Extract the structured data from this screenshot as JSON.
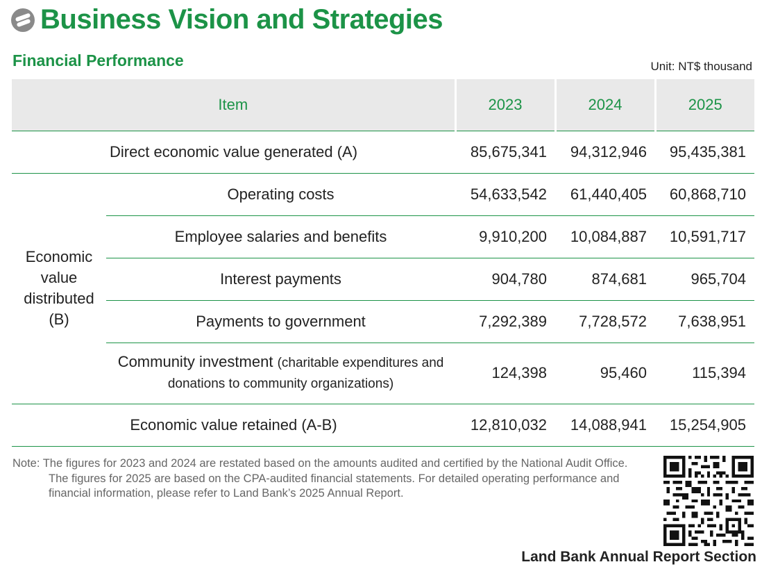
{
  "header": {
    "title": "Business Vision and Strategies",
    "logo_icon": "land-bank-logo-icon"
  },
  "section": {
    "title": "Financial Performance",
    "unit": "Unit: NT$ thousand"
  },
  "table": {
    "columns": [
      "Item",
      "2023",
      "2024",
      "2025"
    ],
    "direct": {
      "label": "Direct economic value generated (A)",
      "values": [
        "85,675,341",
        "94,312,946",
        "95,435,381"
      ]
    },
    "distributed_group": "Economic value distributed (B)",
    "distributed": [
      {
        "label": "Operating costs",
        "values": [
          "54,633,542",
          "61,440,405",
          "60,868,710"
        ]
      },
      {
        "label": "Employee salaries and benefits",
        "values": [
          "9,910,200",
          "10,084,887",
          "10,591,717"
        ]
      },
      {
        "label": "Interest payments",
        "values": [
          "904,780",
          "874,681",
          "965,704"
        ]
      },
      {
        "label": "Payments to government",
        "values": [
          "7,292,389",
          "7,728,572",
          "7,638,951"
        ]
      },
      {
        "label": "Community investment",
        "label_note": "(charitable expenditures and donations to community organizations)",
        "values": [
          "124,398",
          "95,460",
          "115,394"
        ]
      }
    ],
    "retained": {
      "label": "Economic value retained (A-B)",
      "values": [
        "12,810,032",
        "14,088,941",
        "15,254,905"
      ]
    }
  },
  "note": "Note: The figures for 2023 and 2024 are restated based on the amounts audited and certified by the National Audit Office. The figures for 2025 are based on the CPA-audited financial statements. For detailed operating performance and financial information, please refer to Land Bank’s 2025 Annual Report.",
  "qr": {
    "caption": "Land Bank Annual Report Section",
    "icon": "qr-code-icon"
  },
  "colors": {
    "accent": "#1c9347",
    "header_bg": "#e9e9e9"
  }
}
